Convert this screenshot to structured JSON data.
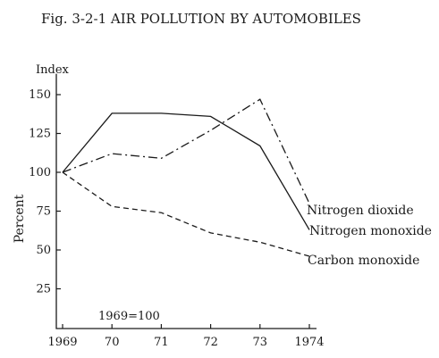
{
  "chart_data": {
    "type": "line",
    "title": "Fig. 3-2-1   AIR POLLUTION BY AUTOMOBILES",
    "y_unit_label": "Index",
    "ylabel": "Percent",
    "xlabel": "",
    "note": "1969=100",
    "x": [
      1969,
      1970,
      1971,
      1972,
      1973,
      1974
    ],
    "x_tick_labels": [
      "1969",
      "70",
      "71",
      "72",
      "73",
      "1974"
    ],
    "y_ticks": [
      25,
      50,
      75,
      100,
      125,
      150
    ],
    "ylim": [
      0,
      160
    ],
    "grid": false,
    "legend": "direct labels at line ends (right)",
    "series": [
      {
        "name": "Nitrogen dioxide",
        "values": [
          100,
          112,
          109,
          127,
          147,
          80
        ],
        "style": "dash-dot"
      },
      {
        "name": "Nitrogen monoxide",
        "values": [
          100,
          138,
          138,
          136,
          117,
          63
        ],
        "style": "solid"
      },
      {
        "name": "Carbon monoxide",
        "values": [
          100,
          78,
          74,
          61,
          55,
          46
        ],
        "style": "dashed"
      }
    ]
  }
}
